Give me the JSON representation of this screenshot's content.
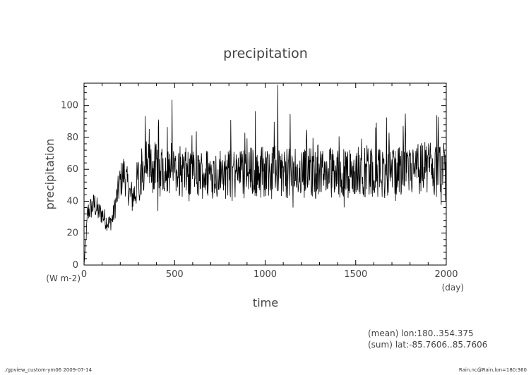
{
  "chart_data": {
    "type": "line",
    "title": "precipitation",
    "xlabel": "time",
    "ylabel": "precipitation",
    "x_unit": "(day)",
    "y_unit": "(W m-2)",
    "xlim": [
      0,
      2000
    ],
    "ylim": [
      0,
      114
    ],
    "xticks": [
      0,
      500,
      1000,
      1500,
      2000
    ],
    "yticks": [
      0,
      20,
      40,
      60,
      80,
      100
    ],
    "grid": false,
    "series": [
      {
        "color": "#000000",
        "x": [
          0,
          10,
          20,
          40,
          60,
          80,
          100,
          120,
          140,
          160,
          180,
          200,
          220,
          240,
          260,
          280,
          300,
          350,
          400,
          450,
          500,
          550,
          600,
          650,
          700,
          750,
          800,
          850,
          900,
          950,
          1000,
          1050,
          1100,
          1150,
          1200,
          1250,
          1300,
          1350,
          1400,
          1450,
          1500,
          1550,
          1600,
          1650,
          1700,
          1750,
          1800,
          1850,
          1900,
          1950,
          2000
        ],
        "y": [
          0,
          15,
          33,
          36,
          38,
          33,
          32,
          28,
          26,
          30,
          42,
          52,
          58,
          50,
          42,
          45,
          55,
          62,
          60,
          62,
          60,
          58,
          56,
          57,
          58,
          57,
          57,
          58,
          58,
          59,
          58,
          60,
          58,
          57,
          58,
          58,
          57,
          58,
          58,
          57,
          58,
          59,
          58,
          58,
          57,
          58,
          59,
          60,
          62,
          58,
          60
        ]
      }
    ]
  },
  "annotations": {
    "mean_label": "(mean) lon:180..354.375",
    "sum_label": "(sum) lat:-85.7606..85.7606"
  },
  "footer": {
    "left": "./gpview_custom-ym06  2009-07-14",
    "right": "Rain.nc@Rain,lon=180:360"
  }
}
